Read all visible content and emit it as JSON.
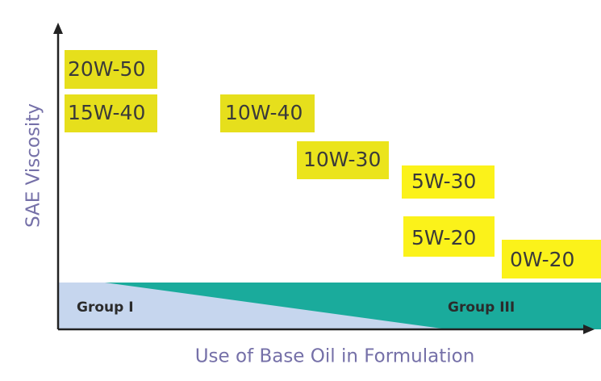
{
  "axes": {
    "y_label": "SAE Viscosity",
    "x_label": "Use of Base Oil in Formulation"
  },
  "grades": [
    "20W-50",
    "15W-40",
    "10W-40",
    "10W-30",
    "5W-30",
    "5W-20",
    "0W-20"
  ],
  "groups": [
    "Group I",
    "Group III"
  ]
}
